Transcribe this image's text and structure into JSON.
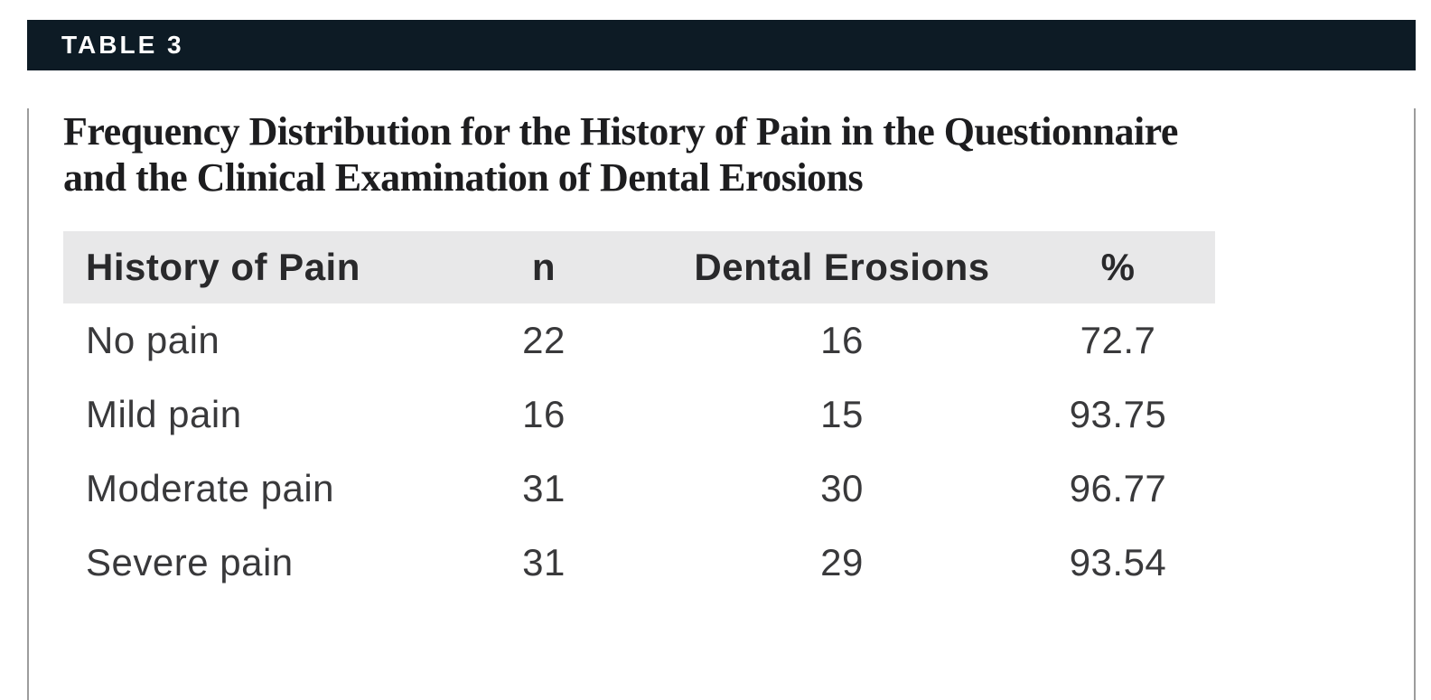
{
  "table_label": "TABLE 3",
  "title": {
    "line1": "Frequency Distribution for the History of Pain in the Questionnaire",
    "line2": "and the Clinical Examination of Dental Erosions",
    "full": "Frequency Distribution for the History of Pain in the Questionnaire and the Clinical Examination of Dental Erosions"
  },
  "columns": [
    "History of Pain",
    "n",
    "Dental Erosions",
    "%"
  ],
  "rows": [
    {
      "history": "No pain",
      "n": "22",
      "erosions": "16",
      "pct": "72.7"
    },
    {
      "history": "Mild pain",
      "n": "16",
      "erosions": "15",
      "pct": "93.75"
    },
    {
      "history": "Moderate pain",
      "n": "31",
      "erosions": "30",
      "pct": "96.77"
    },
    {
      "history": "Severe pain",
      "n": "31",
      "erosions": "29",
      "pct": "93.54"
    }
  ],
  "colors": {
    "header_bar_bg": "#0d1b25",
    "header_bar_text": "#ffffff",
    "column_header_bg": "#e8e8e9",
    "card_border": "#9c9c9c",
    "title_text": "#1d1d1f",
    "body_text": "#39393b"
  },
  "chart_data": {
    "type": "table",
    "title": "Frequency Distribution for the History of Pain in the Questionnaire and the Clinical Examination of Dental Erosions",
    "columns": [
      "History of Pain",
      "n",
      "Dental Erosions",
      "%"
    ],
    "rows": [
      [
        "No pain",
        22,
        16,
        72.7
      ],
      [
        "Mild pain",
        16,
        15,
        93.75
      ],
      [
        "Moderate pain",
        31,
        30,
        96.77
      ],
      [
        "Severe pain",
        31,
        29,
        93.54
      ]
    ]
  }
}
